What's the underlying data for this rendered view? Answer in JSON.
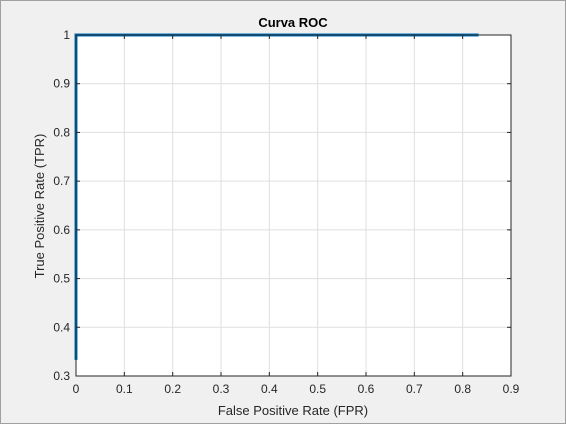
{
  "chart_data": {
    "type": "line",
    "title": "Curva ROC",
    "xlabel": "False Positive Rate (FPR)",
    "ylabel": "True Positive Rate (TPR)",
    "xlim": [
      0,
      0.9
    ],
    "ylim": [
      0.3,
      1
    ],
    "xticks": [
      0,
      0.1,
      0.2,
      0.3,
      0.4,
      0.5,
      0.6,
      0.7,
      0.8,
      0.9
    ],
    "yticks": [
      0.3,
      0.4,
      0.5,
      0.6,
      0.7,
      0.8,
      0.9,
      1
    ],
    "xtick_labels": [
      "0",
      "0.1",
      "0.2",
      "0.3",
      "0.4",
      "0.5",
      "0.6",
      "0.7",
      "0.8",
      "0.9"
    ],
    "ytick_labels": [
      "0.3",
      "0.4",
      "0.5",
      "0.6",
      "0.7",
      "0.8",
      "0.9",
      "1"
    ],
    "grid": true,
    "series": [
      {
        "x": [
          0,
          0,
          0.833
        ],
        "y": [
          0.333,
          1,
          1
        ],
        "color": "#0072bd"
      }
    ]
  }
}
